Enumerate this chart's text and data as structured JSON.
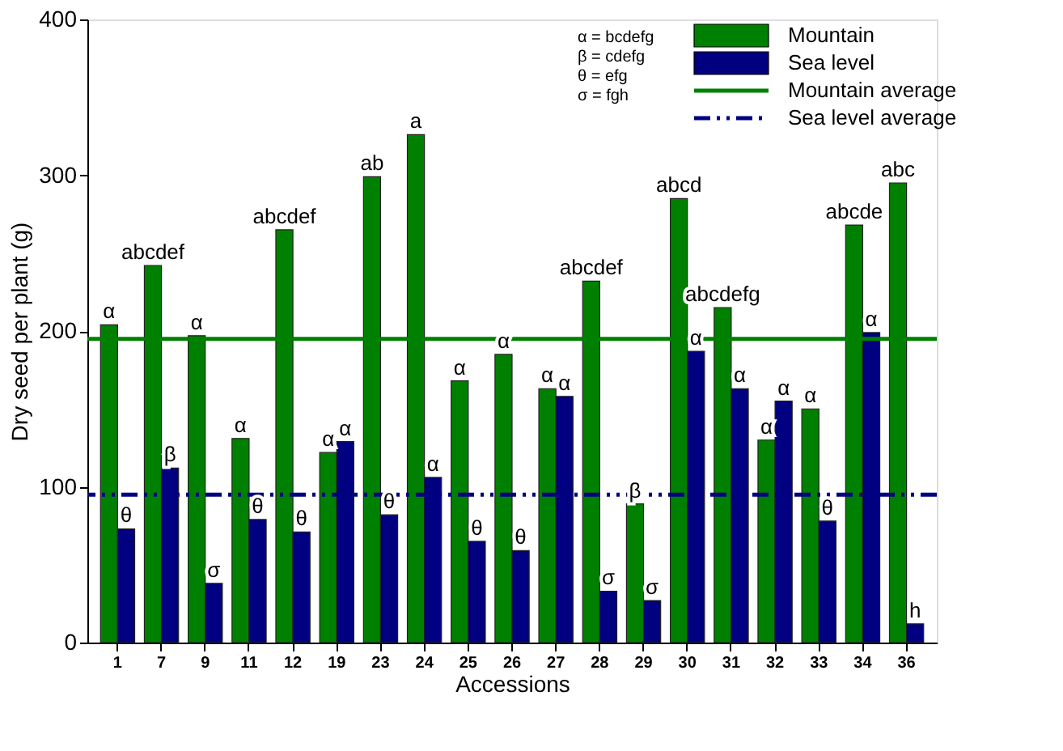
{
  "chart_data": {
    "type": "bar",
    "xlabel": "Accessions",
    "ylabel": "Dry seed per plant (g)",
    "categories": [
      "1",
      "7",
      "9",
      "11",
      "12",
      "19",
      "23",
      "24",
      "25",
      "26",
      "27",
      "28",
      "29",
      "30",
      "31",
      "32",
      "33",
      "34",
      "36"
    ],
    "series": [
      {
        "name": "Mountain",
        "color": "#008000",
        "values": [
          204,
          242,
          197,
          131,
          265,
          122,
          299,
          326,
          168,
          185,
          163,
          232,
          89,
          285,
          215,
          130,
          150,
          268,
          295
        ],
        "value_labels": [
          "α",
          "abcdef",
          "α",
          "α",
          "abcdef",
          "α",
          "ab",
          "a",
          "α",
          "α",
          "α",
          "abcdef",
          "β",
          "abcd",
          "abcdefg",
          "α",
          "α",
          "abcde",
          "abc"
        ]
      },
      {
        "name": "Sea level",
        "color": "#000080",
        "values": [
          73,
          112,
          38,
          79,
          71,
          129,
          82,
          106,
          65,
          59,
          158,
          33,
          27,
          187,
          163,
          155,
          78,
          199,
          12
        ],
        "value_labels": [
          "θ",
          "β",
          "σ",
          "θ",
          "θ",
          "α",
          "θ",
          "α",
          "θ",
          "θ",
          "α",
          "σ",
          "σ",
          "α",
          "α",
          "α",
          "θ",
          "α",
          "h"
        ]
      }
    ],
    "ref_lines": [
      {
        "axis": "y",
        "value": 195,
        "label": "Mountain average",
        "color": "#008000",
        "line_style": "solid"
      },
      {
        "axis": "y",
        "value": 95,
        "label": "Sea level average",
        "color": "#000080",
        "line_style": "dashed"
      }
    ],
    "annotations": [
      "α = bcdefg",
      "β = cdefg",
      "θ = efg",
      "σ = fgh"
    ],
    "ylim": [
      0,
      400
    ],
    "yticks": [
      0,
      100,
      200,
      300,
      400
    ],
    "grid": false,
    "legend": "top right"
  }
}
